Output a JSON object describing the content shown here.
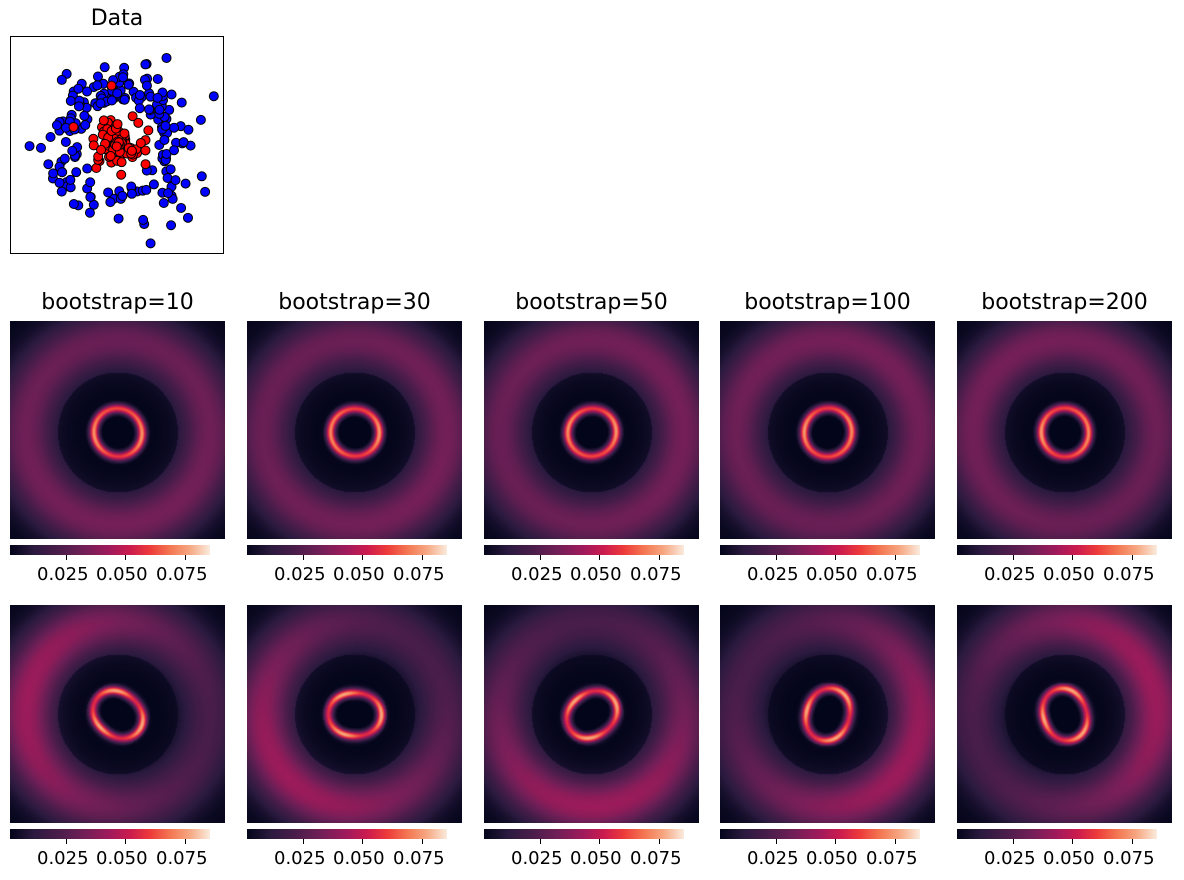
{
  "chart_data": [
    {
      "type": "scatter",
      "title": "Data",
      "series": [
        {
          "color": "#0000ff",
          "role": "outer"
        },
        {
          "color": "#ff0000",
          "role": "inner"
        }
      ],
      "axes_visible": false
    },
    {
      "type": "heatmap",
      "panels": [
        {
          "title": "bootstrap=10",
          "colorbar_ticks": [
            "0.025",
            "0.050",
            "0.075"
          ]
        },
        {
          "title": "bootstrap=30",
          "colorbar_ticks": [
            "0.025",
            "0.050",
            "0.075"
          ]
        },
        {
          "title": "bootstrap=50",
          "colorbar_ticks": [
            "0.025",
            "0.050",
            "0.075"
          ]
        },
        {
          "title": "bootstrap=100",
          "colorbar_ticks": [
            "0.025",
            "0.050",
            "0.075"
          ]
        },
        {
          "title": "bootstrap=200",
          "colorbar_ticks": [
            "0.025",
            "0.050",
            "0.075"
          ]
        }
      ],
      "colormap": "rocket"
    },
    {
      "type": "heatmap",
      "panels": [
        {
          "colorbar_ticks": [
            "0.025",
            "0.050",
            "0.075"
          ]
        },
        {
          "colorbar_ticks": [
            "0.025",
            "0.050",
            "0.075"
          ]
        },
        {
          "colorbar_ticks": [
            "0.025",
            "0.050",
            "0.075"
          ]
        },
        {
          "colorbar_ticks": [
            "0.025",
            "0.050",
            "0.075"
          ]
        },
        {
          "colorbar_ticks": [
            "0.025",
            "0.050",
            "0.075"
          ]
        }
      ],
      "colormap": "rocket"
    }
  ]
}
